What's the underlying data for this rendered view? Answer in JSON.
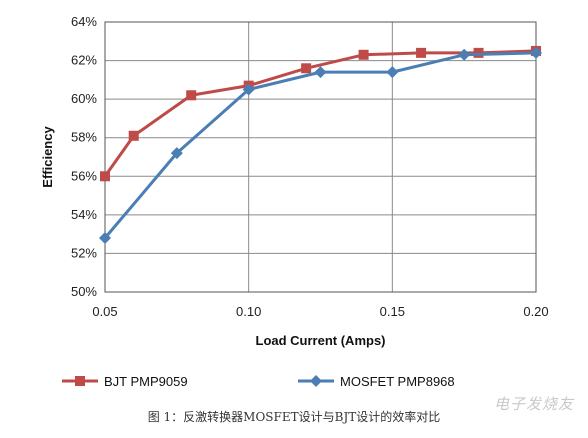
{
  "chart_data": {
    "type": "line",
    "title": "",
    "xlabel": "Load Current (Amps)",
    "ylabel": "Efficiency",
    "xlim": [
      0.05,
      0.2
    ],
    "ylim": [
      50,
      64
    ],
    "x_ticks": [
      "0.05",
      "0.10",
      "0.15",
      "0.20"
    ],
    "y_ticks": [
      "50%",
      "52%",
      "54%",
      "56%",
      "58%",
      "60%",
      "62%",
      "64%"
    ],
    "x_tick_values": [
      0.05,
      0.1,
      0.15,
      0.2
    ],
    "y_tick_values": [
      50,
      52,
      54,
      56,
      58,
      60,
      62,
      64
    ],
    "grid": true,
    "legend_position": "bottom",
    "series": [
      {
        "name": "BJT PMP9059",
        "color": "#be4b48",
        "marker": "square",
        "x": [
          0.05,
          0.06,
          0.08,
          0.1,
          0.12,
          0.14,
          0.16,
          0.18,
          0.2
        ],
        "y": [
          56.0,
          58.1,
          60.2,
          60.7,
          61.6,
          62.3,
          62.4,
          62.4,
          62.5
        ]
      },
      {
        "name": "MOSFET PMP8968",
        "color": "#4a7eb5",
        "marker": "diamond",
        "x": [
          0.05,
          0.075,
          0.1,
          0.125,
          0.15,
          0.175,
          0.2
        ],
        "y": [
          52.8,
          57.2,
          60.5,
          61.4,
          61.4,
          62.3,
          62.4
        ]
      }
    ]
  },
  "caption": "图 1：反激转换器MOSFET设计与BJT设计的效率对比",
  "watermark": "电子发烧友"
}
